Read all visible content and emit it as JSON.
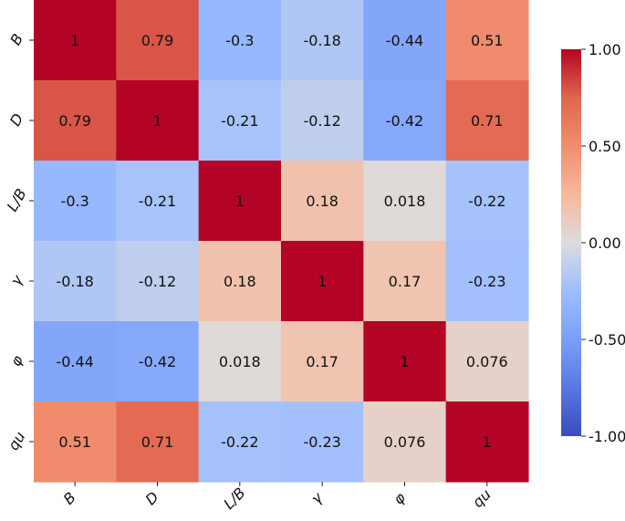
{
  "chart_data": {
    "type": "heatmap",
    "labels": [
      "B",
      "D",
      "L/B",
      "γ",
      "φ",
      "qu"
    ],
    "matrix": [
      [
        1,
        0.79,
        -0.3,
        -0.18,
        -0.44,
        0.51
      ],
      [
        0.79,
        1,
        -0.21,
        -0.12,
        -0.42,
        0.71
      ],
      [
        -0.3,
        -0.21,
        1,
        0.18,
        0.018,
        -0.22
      ],
      [
        -0.18,
        -0.12,
        0.18,
        1,
        0.17,
        -0.23
      ],
      [
        -0.44,
        -0.42,
        0.018,
        0.17,
        1,
        0.076
      ],
      [
        0.51,
        0.71,
        -0.22,
        -0.23,
        0.076,
        1
      ]
    ],
    "cell_labels": [
      [
        "1",
        "0.79",
        "-0.3",
        "-0.18",
        "-0.44",
        "0.51"
      ],
      [
        "0.79",
        "1",
        "-0.21",
        "-0.12",
        "-0.42",
        "0.71"
      ],
      [
        "-0.3",
        "-0.21",
        "1",
        "0.18",
        "0.018",
        "-0.22"
      ],
      [
        "-0.18",
        "-0.12",
        "0.18",
        "1",
        "0.17",
        "-0.23"
      ],
      [
        "-0.44",
        "-0.42",
        "0.018",
        "0.17",
        "1",
        "0.076"
      ],
      [
        "0.51",
        "0.71",
        "-0.22",
        "-0.23",
        "0.076",
        "1"
      ]
    ],
    "colormap": "coolwarm",
    "vmin": -1,
    "vmax": 1,
    "colorbar": {
      "ticks": [
        1,
        0.5,
        0,
        -0.5,
        -1
      ],
      "tick_labels": [
        "1.00",
        "0.50",
        "0.00",
        "-0.50",
        "-1.00"
      ],
      "placement": "right"
    },
    "title": "",
    "xlabel": "",
    "ylabel": ""
  }
}
